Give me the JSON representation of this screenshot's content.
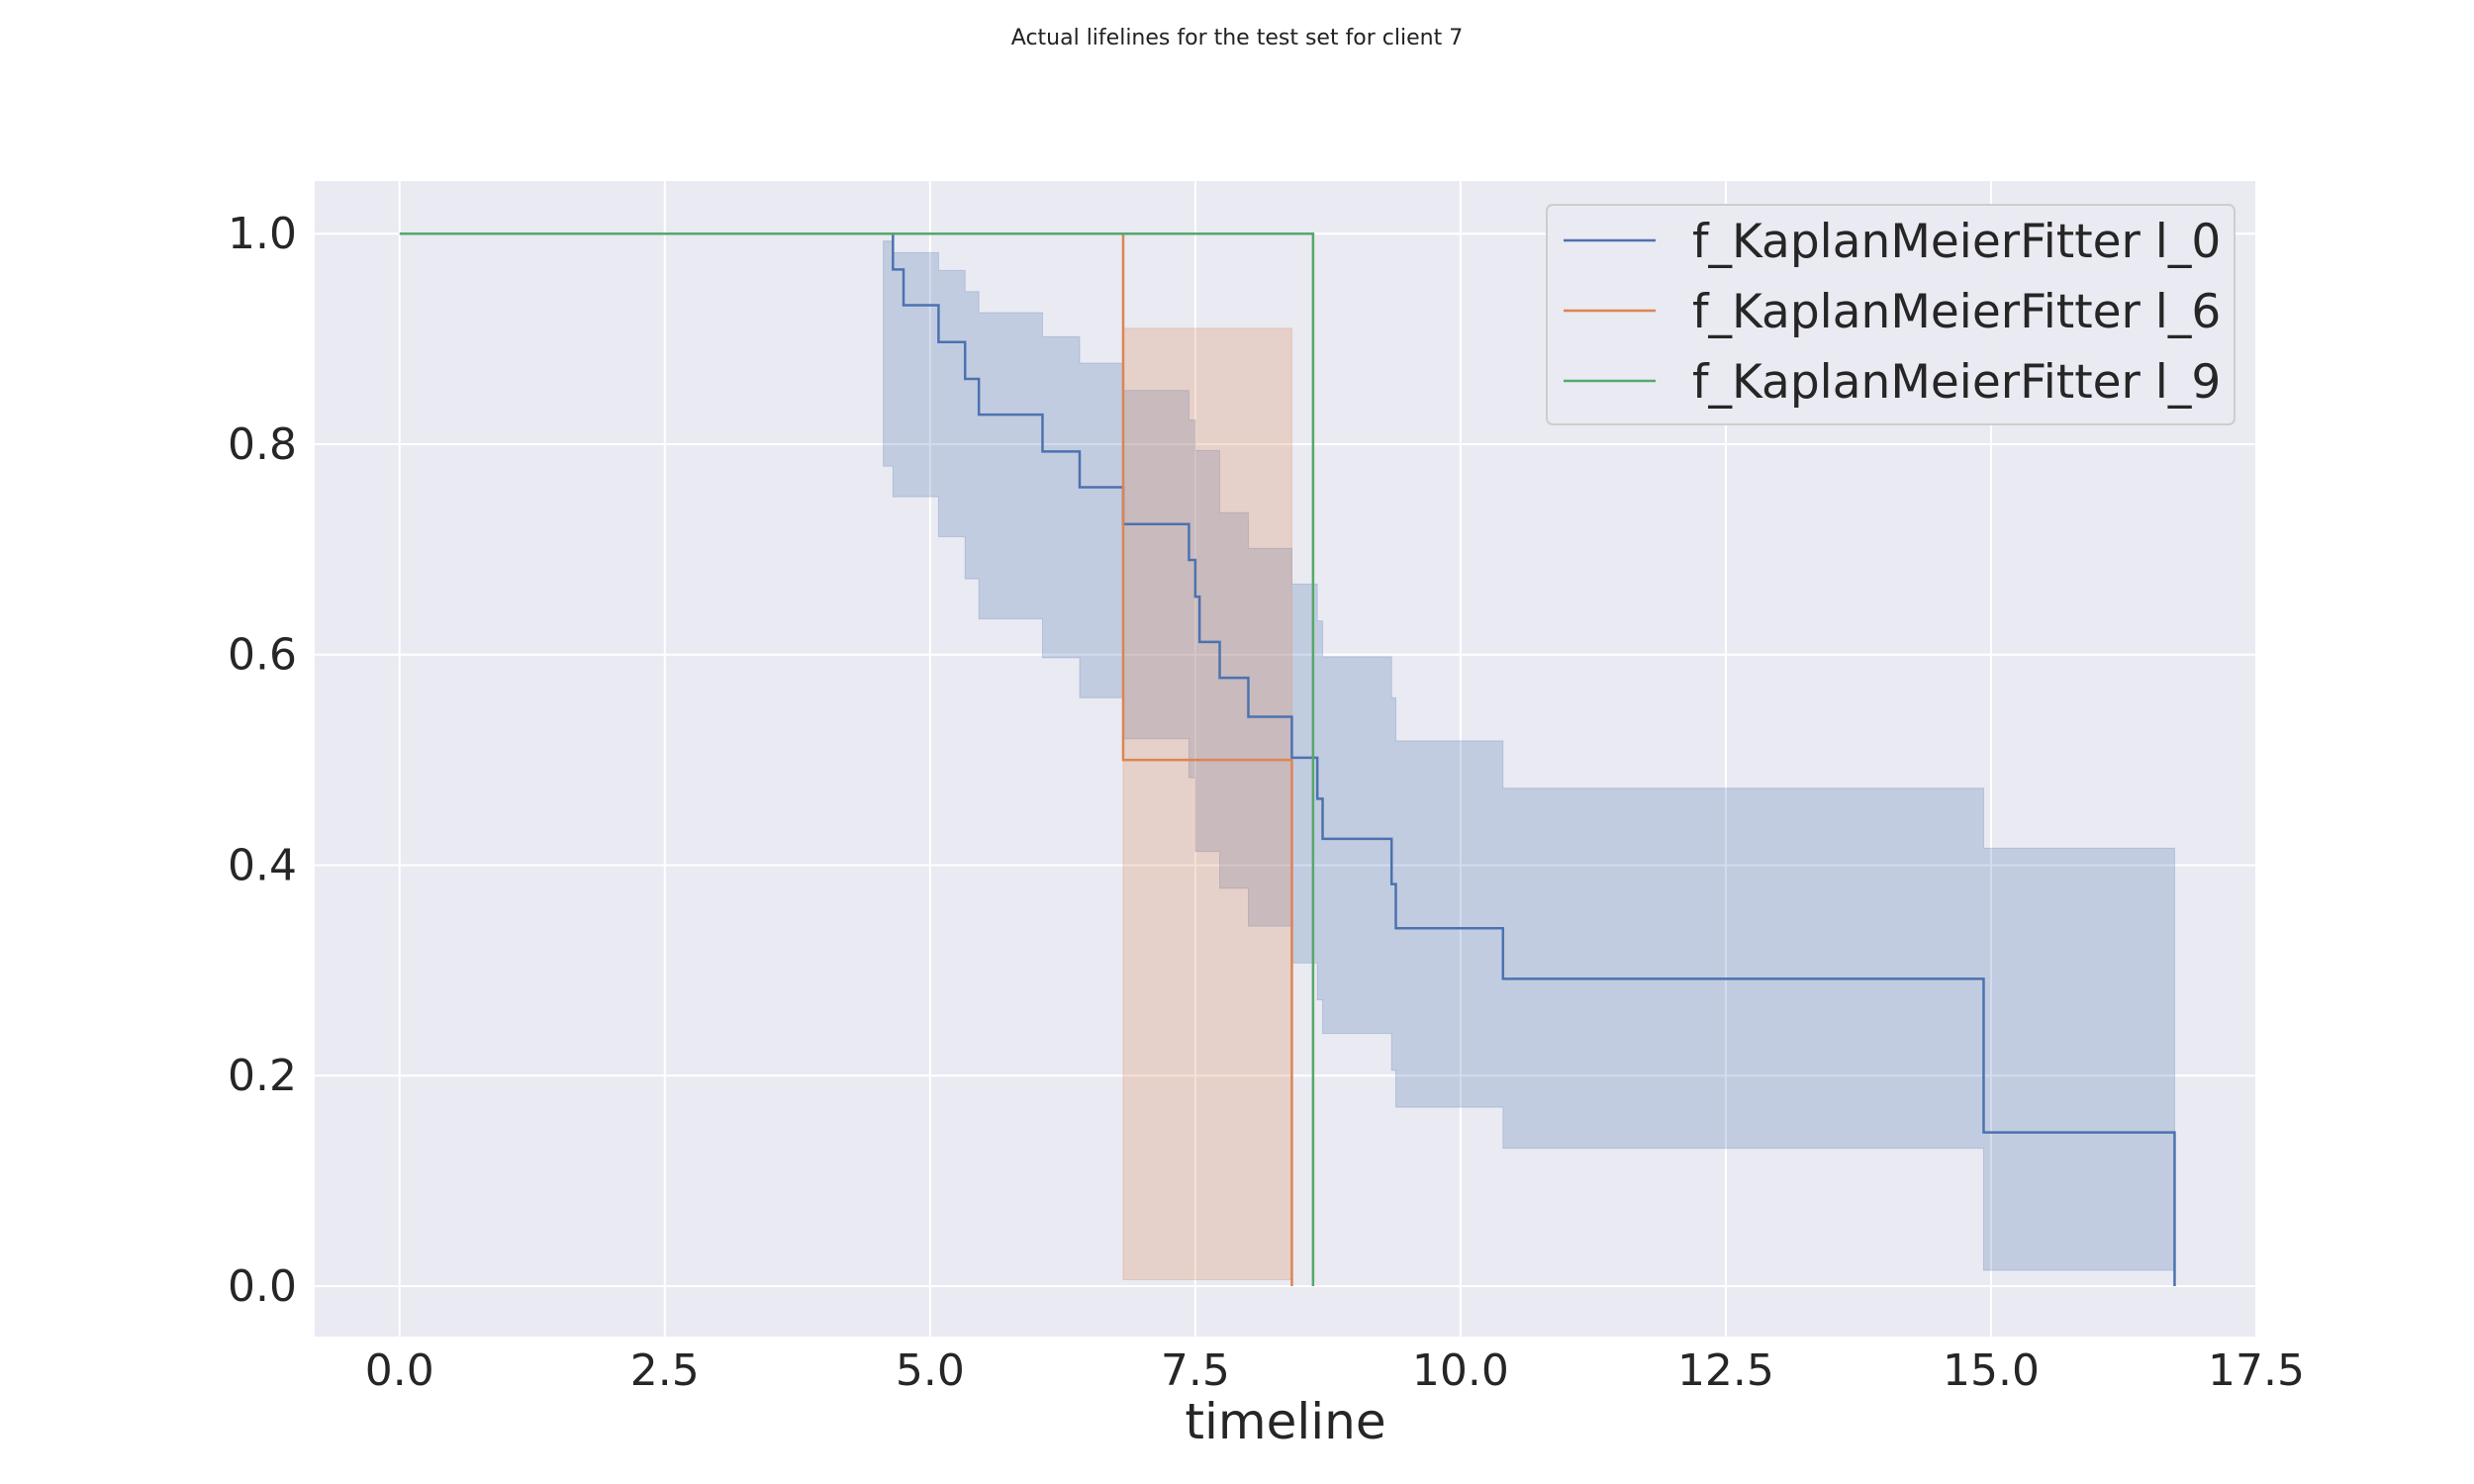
{
  "chart_data": {
    "type": "line",
    "title": "Actual lifelines for the test set for client 7",
    "xlabel": "timeline",
    "ylabel": "",
    "xlim": [
      -0.8,
      17.5
    ],
    "ylim": [
      -0.048,
      1.05
    ],
    "xticks": [
      0.0,
      2.5,
      5.0,
      7.5,
      10.0,
      12.5,
      15.0,
      17.5
    ],
    "yticks": [
      0.0,
      0.2,
      0.4,
      0.6,
      0.8,
      1.0
    ],
    "xtick_labels": [
      "0.0",
      "2.5",
      "5.0",
      "7.5",
      "10.0",
      "12.5",
      "15.0",
      "17.5"
    ],
    "ytick_labels": [
      "0.0",
      "0.2",
      "0.4",
      "0.6",
      "0.8",
      "1.0"
    ],
    "grid": true,
    "legend_position": "top-right",
    "series": [
      {
        "name": "f_KaplanMeierFitter l_0",
        "color": "#4c72b0",
        "step": [
          [
            4.56,
            1.0
          ],
          [
            4.65,
            0.966
          ],
          [
            4.75,
            0.932
          ],
          [
            5.08,
            0.897
          ],
          [
            5.33,
            0.862
          ],
          [
            5.46,
            0.828
          ],
          [
            6.06,
            0.793
          ],
          [
            6.41,
            0.759
          ],
          [
            6.82,
            0.724
          ],
          [
            7.44,
            0.69
          ],
          [
            7.5,
            0.655
          ],
          [
            7.54,
            0.612
          ],
          [
            7.73,
            0.578
          ],
          [
            8.0,
            0.541
          ],
          [
            8.41,
            0.502
          ],
          [
            8.65,
            0.463
          ],
          [
            8.7,
            0.425
          ],
          [
            9.35,
            0.382
          ],
          [
            9.39,
            0.34
          ],
          [
            10.4,
            0.292
          ],
          [
            14.93,
            0.146
          ],
          [
            16.73,
            0.0
          ]
        ],
        "ci_lower": [
          [
            4.56,
            0.779
          ],
          [
            4.65,
            0.75
          ],
          [
            5.08,
            0.712
          ],
          [
            5.33,
            0.672
          ],
          [
            5.46,
            0.634
          ],
          [
            6.06,
            0.597
          ],
          [
            6.41,
            0.559
          ],
          [
            6.82,
            0.52
          ],
          [
            7.44,
            0.483
          ],
          [
            7.5,
            0.413
          ],
          [
            7.73,
            0.378
          ],
          [
            8.0,
            0.342
          ],
          [
            8.41,
            0.307
          ],
          [
            8.65,
            0.272
          ],
          [
            8.7,
            0.24
          ],
          [
            9.35,
            0.205
          ],
          [
            9.39,
            0.17
          ],
          [
            10.4,
            0.131
          ],
          [
            14.93,
            0.015
          ],
          [
            16.73,
            0.015
          ]
        ],
        "ci_upper": [
          [
            4.56,
            0.993
          ],
          [
            4.65,
            0.982
          ],
          [
            5.08,
            0.965
          ],
          [
            5.33,
            0.945
          ],
          [
            5.46,
            0.925
          ],
          [
            6.06,
            0.902
          ],
          [
            6.41,
            0.877
          ],
          [
            6.82,
            0.851
          ],
          [
            7.44,
            0.823
          ],
          [
            7.5,
            0.794
          ],
          [
            7.73,
            0.735
          ],
          [
            8.0,
            0.701
          ],
          [
            8.41,
            0.667
          ],
          [
            8.65,
            0.632
          ],
          [
            8.7,
            0.598
          ],
          [
            9.35,
            0.559
          ],
          [
            9.39,
            0.518
          ],
          [
            10.4,
            0.473
          ],
          [
            14.93,
            0.416
          ],
          [
            16.73,
            0.416
          ]
        ]
      },
      {
        "name": "f_KaplanMeierFitter l_6",
        "color": "#dd8452",
        "step": [
          [
            6.82,
            1.0
          ],
          [
            6.82,
            0.5
          ],
          [
            8.41,
            0.0
          ]
        ],
        "ci_lower": [
          [
            6.82,
            0.006
          ],
          [
            8.41,
            0.006
          ]
        ],
        "ci_upper": [
          [
            6.82,
            0.91
          ],
          [
            8.41,
            0.91
          ]
        ]
      },
      {
        "name": "f_KaplanMeierFitter l_9",
        "color": "#55a868",
        "step": [
          [
            0.0,
            1.0
          ],
          [
            8.61,
            0.0
          ]
        ]
      }
    ]
  }
}
